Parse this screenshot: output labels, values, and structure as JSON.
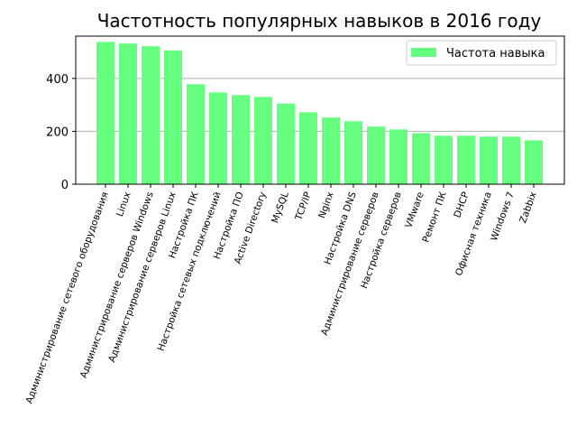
{
  "chart_data": {
    "type": "bar",
    "title": "Частотность популярных навыков в 2016 году",
    "xlabel": "",
    "ylabel": "",
    "ylim": [
      0,
      560
    ],
    "yticks": [
      0,
      200,
      400
    ],
    "grid": "horizontal",
    "legend_position": "top-right",
    "bar_color": "#66ff7f",
    "categories": [
      "Администрирование сетевого оборудования",
      "Linux",
      "Администрирование серверов Windows",
      "Администрирование серверов Linux",
      "Настройка ПК",
      "Настройка сетевых подключений",
      "Настройка ПО",
      "Active Directory",
      "MySQL",
      "TCP/IP",
      "Nginx",
      "Настройка DNS",
      "Администрирование серверов",
      "Настройка серверов",
      "VMware",
      "Ремонт ПК",
      "DHCP",
      "Офисная техника",
      "Windows 7",
      "Zabbix"
    ],
    "series": [
      {
        "name": "Частота навыка",
        "values": [
          538,
          532,
          522,
          506,
          378,
          347,
          337,
          330,
          305,
          272,
          252,
          238,
          218,
          207,
          193,
          183,
          183,
          180,
          180,
          166
        ]
      }
    ]
  }
}
